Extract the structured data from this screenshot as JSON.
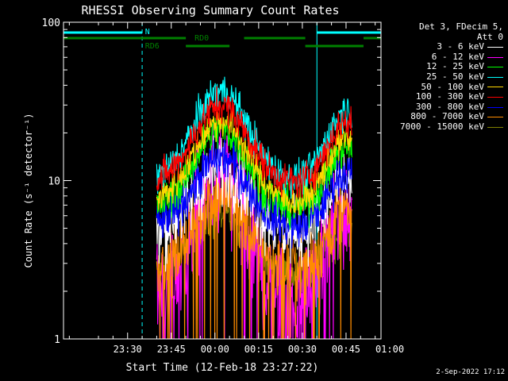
{
  "chart_data": {
    "type": "line",
    "title": "RHESSI Observing Summary Count Rates",
    "xlabel": "Start Time (12-Feb-18 23:27:22)",
    "ylabel": "Count Rate (s⁻¹ detector⁻¹)",
    "yscale": "log",
    "ylim": [
      1,
      100
    ],
    "xlim_minutes": [
      -52,
      57
    ],
    "x_ticks": [
      {
        "label": "23:30",
        "t": -30
      },
      {
        "label": "23:45",
        "t": -15
      },
      {
        "label": "00:00",
        "t": 0
      },
      {
        "label": "00:15",
        "t": 15
      },
      {
        "label": "00:30",
        "t": 30
      },
      {
        "label": "00:45",
        "t": 45
      },
      {
        "label": "01:00",
        "t": 60
      }
    ],
    "y_ticks": [
      {
        "label": "1",
        "v": 1
      },
      {
        "label": "10",
        "v": 10
      },
      {
        "label": "100",
        "v": 100
      }
    ],
    "legend_header": [
      "Det 3, FDecim 5,",
      "Att 0"
    ],
    "series": [
      {
        "name": "3 - 6 keV",
        "color": "#ffffff",
        "peak": 12,
        "floor": 4.6,
        "noise": 0.3
      },
      {
        "name": "6 - 12 keV",
        "color": "#ff00ff",
        "peak": 10,
        "floor": 1.6,
        "noise": 0.55
      },
      {
        "name": "12 - 25 keV",
        "color": "#00ff00",
        "peak": 21,
        "floor": 6.5,
        "noise": 0.18
      },
      {
        "name": "25 - 50 keV",
        "color": "#00ffff",
        "peak": 37,
        "floor": 10,
        "noise": 0.16
      },
      {
        "name": "50 - 100 keV",
        "color": "#ffd700",
        "peak": 24,
        "floor": 7.2,
        "noise": 0.15
      },
      {
        "name": "100 - 300 keV",
        "color": "#ff0000",
        "peak": 30,
        "floor": 9.5,
        "noise": 0.16
      },
      {
        "name": "300 - 800 keV",
        "color": "#0000ff",
        "peak": 14,
        "floor": 5.0,
        "noise": 0.2
      },
      {
        "name": "800 - 7000 keV",
        "color": "#ff8c00",
        "peak": 8,
        "floor": 2.8,
        "noise": 0.3
      },
      {
        "name": "7000 - 15000 keV",
        "color": "#808000",
        "peak": 6,
        "floor": 2.5,
        "noise": 0.2
      }
    ],
    "flags": [
      {
        "label": "N",
        "color": "#00ffff",
        "segments": [
          [
            -52,
            -25
          ],
          [
            35,
            57
          ]
        ],
        "level": 0
      },
      {
        "label": "RD0",
        "color": "#008000",
        "segments": [
          [
            -52,
            -10
          ],
          [
            10,
            31
          ],
          [
            51,
            57
          ]
        ],
        "level": 1
      },
      {
        "label": "RD6",
        "color": "#008000",
        "segments": [
          [
            -10,
            5
          ],
          [
            31,
            51
          ]
        ],
        "level": 2
      }
    ],
    "vlines": [
      {
        "t": -52,
        "color": "#00ffff",
        "style": "solid"
      },
      {
        "t": -25,
        "color": "#00ffff",
        "style": "dashed"
      },
      {
        "t": 35,
        "color": "#00ffff",
        "style": "solid"
      },
      {
        "t": 57,
        "color": "#00ffff",
        "style": "dashed"
      }
    ],
    "data_range_minutes": [
      -20,
      47
    ]
  },
  "timestamp": "2-Sep-2022 17:12"
}
